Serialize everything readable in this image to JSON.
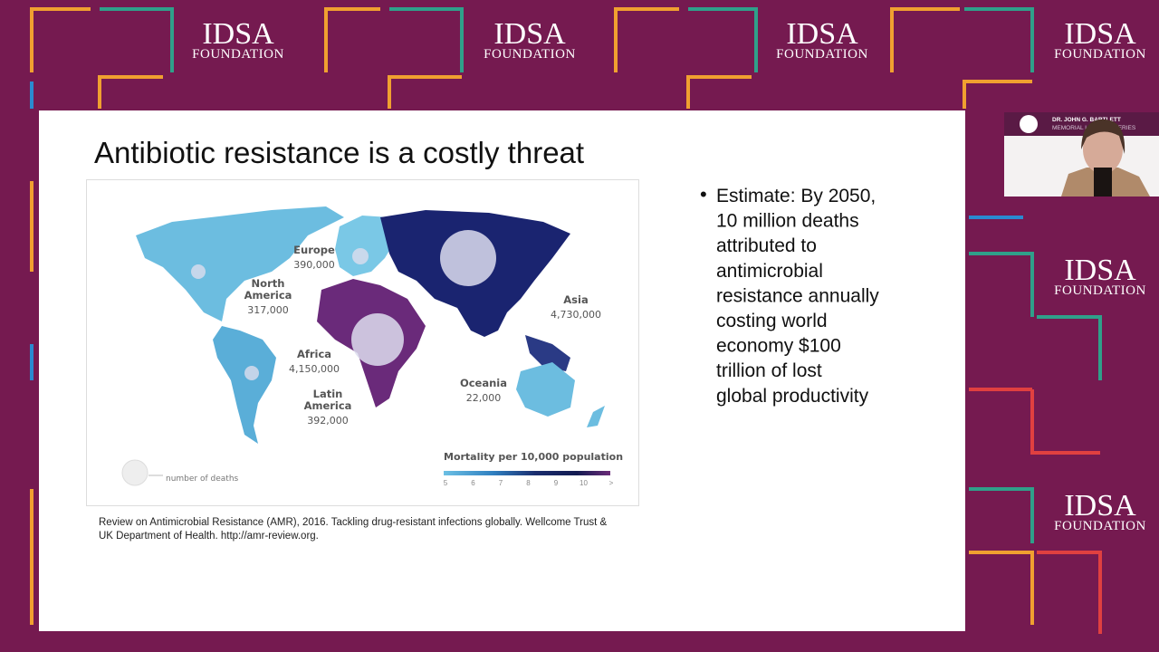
{
  "logos": [
    {
      "name": "IDSA",
      "sub": "FOUNDATION"
    },
    {
      "name": "IDSA",
      "sub": "FOUNDATION"
    },
    {
      "name": "IDSA",
      "sub": "FOUNDATION"
    },
    {
      "name": "IDSA",
      "sub": "FOUNDATION"
    },
    {
      "name": "IDSA",
      "sub": "FOUNDATION"
    },
    {
      "name": "IDSA",
      "sub": "FOUNDATION"
    }
  ],
  "slide": {
    "title": "Antibiotic resistance is a costly threat",
    "map": {
      "regions": [
        {
          "name_lines": [
            "Europe"
          ],
          "deaths": "390,000"
        },
        {
          "name_lines": [
            "North",
            "America"
          ],
          "deaths": "317,000"
        },
        {
          "name_lines": [
            "Asia"
          ],
          "deaths": "4,730,000"
        },
        {
          "name_lines": [
            "Africa"
          ],
          "deaths": "4,150,000"
        },
        {
          "name_lines": [
            "Latin",
            "America"
          ],
          "deaths": "392,000"
        },
        {
          "name_lines": [
            "Oceania"
          ],
          "deaths": "22,000"
        }
      ],
      "circle_legend": "number of deaths",
      "scale_title": "Mortality per 10,000 population",
      "scale_ticks": [
        "5",
        "6",
        "7",
        "8",
        "9",
        "10",
        ">"
      ]
    },
    "bullet": [
      "Estimate: By 2050,",
      "10 million deaths",
      "attributed to",
      "antimicrobial",
      "resistance annually",
      "costing world",
      "economy $100",
      "trillion of lost",
      "global productivity"
    ],
    "citation": [
      "Review on Antimicrobial Resistance (AMR), 2016. Tackling drug-resistant infections globally. Wellcome Trust &",
      "UK Department of Health. http://amr-review.org."
    ]
  },
  "webcam": {
    "banner": [
      "DR. JOHN G. BARTLETT",
      "MEMORIAL LECTURE SERIES"
    ]
  }
}
